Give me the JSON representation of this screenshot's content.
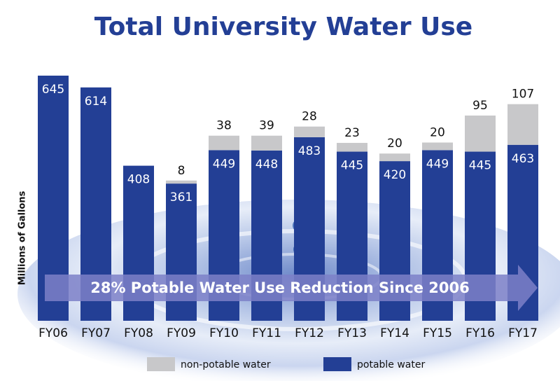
{
  "chart_data": {
    "type": "stacked_bar",
    "title": "Total University Water Use",
    "y_label": "Millions of Gallons",
    "annotation": "28% Potable Water Use Reduction Since 2006",
    "categories": [
      "FY06",
      "FY07",
      "FY08",
      "FY09",
      "FY10",
      "FY11",
      "FY12",
      "FY13",
      "FY14",
      "FY15",
      "FY16",
      "FY17"
    ],
    "series": [
      {
        "name": "non-potable water",
        "color": "#c8c8ca",
        "values": [
          null,
          null,
          null,
          8,
          38,
          39,
          28,
          23,
          20,
          20,
          95,
          107
        ]
      },
      {
        "name": "potable water",
        "color": "#233f95",
        "values": [
          645,
          614,
          408,
          361,
          449,
          448,
          483,
          445,
          420,
          449,
          445,
          463
        ]
      }
    ]
  }
}
